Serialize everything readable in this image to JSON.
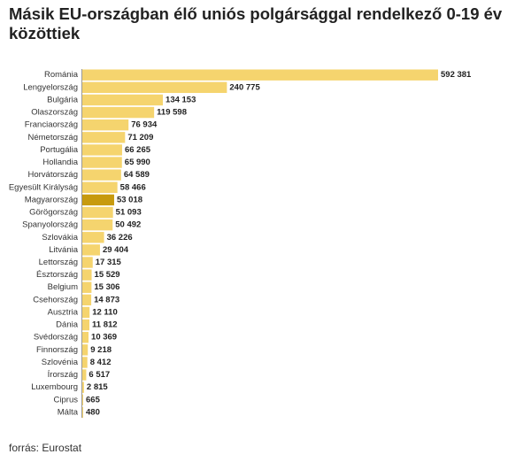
{
  "title": "Másik EU-országban élő uniós polgársággal rendelkező 0-19 év közöttiek",
  "source": "forrás: Eurostat",
  "colors": {
    "bar": "#f5d46e",
    "highlight": "#c79a0e"
  },
  "chart_data": {
    "type": "bar",
    "orientation": "horizontal",
    "categories": [
      "Románia",
      "Lengyelország",
      "Bulgária",
      "Olaszország",
      "Franciaország",
      "Németország",
      "Portugália",
      "Hollandia",
      "Horvátország",
      "Egyesült Királyság",
      "Magyarország",
      "Görögország",
      "Spanyolország",
      "Szlovákia",
      "Litvánia",
      "Lettország",
      "Észtország",
      "Belgium",
      "Csehország",
      "Ausztria",
      "Dánia",
      "Svédország",
      "Finnország",
      "Szlovénia",
      "Írország",
      "Luxembourg",
      "Ciprus",
      "Málta"
    ],
    "values": [
      592381,
      240775,
      134153,
      119598,
      76934,
      71209,
      66265,
      65990,
      64589,
      58466,
      53018,
      51093,
      50492,
      36226,
      29404,
      17315,
      15529,
      15306,
      14873,
      12110,
      11812,
      10369,
      9218,
      8412,
      6517,
      2815,
      665,
      480
    ],
    "value_labels": [
      "592 381",
      "240 775",
      "134 153",
      "119 598",
      "76 934",
      "71 209",
      "66 265",
      "65 990",
      "64 589",
      "58 466",
      "53 018",
      "51 093",
      "50 492",
      "36 226",
      "29 404",
      "17 315",
      "15 529",
      "15 306",
      "14 873",
      "12 110",
      "11 812",
      "10 369",
      "9 218",
      "8 412",
      "6 517",
      "2 815",
      "665",
      "480"
    ],
    "highlight": "Magyarország",
    "xlim": [
      0,
      592381
    ]
  }
}
